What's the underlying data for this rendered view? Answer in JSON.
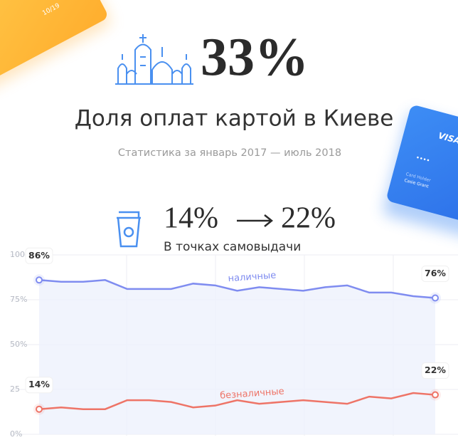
{
  "header": {
    "stat": "33%",
    "title": "Доля оплат картой в Киеве",
    "subtitle": "Статистика за январь 2017 — июль 2018"
  },
  "sub_stat": {
    "from": "14%",
    "to": "22%",
    "caption": "В точках самовыдачи"
  },
  "decor_cards": {
    "expiry": "10/19",
    "brand": "VISA",
    "holder_label": "Card Holder",
    "holder_name": "Casie Grant"
  },
  "chart_data": {
    "type": "line",
    "ylim": [
      0,
      100
    ],
    "yticks": [
      {
        "value": 0,
        "label": "0%"
      },
      25,
      {
        "value": 50,
        "label": "50%"
      },
      {
        "value": 75,
        "label": "75%"
      },
      100
    ],
    "grid": true,
    "series": [
      {
        "name": "наличные",
        "color": "#7f8cf0",
        "values": [
          86,
          85,
          85,
          86,
          81,
          81,
          81,
          84,
          83,
          80,
          82,
          81,
          80,
          82,
          83,
          79,
          79,
          77,
          76
        ],
        "value_labels": [
          "86%",
          null,
          null,
          null,
          null,
          null,
          null,
          null,
          null,
          null,
          null,
          null,
          null,
          null,
          null,
          null,
          null,
          null,
          "76%"
        ]
      },
      {
        "name": "безналичные",
        "color": "#ee7467",
        "values": [
          14,
          15,
          14,
          14,
          19,
          19,
          18,
          15,
          16,
          19,
          17,
          18,
          19,
          18,
          17,
          21,
          20,
          23,
          22
        ],
        "value_labels": [
          "14%",
          null,
          null,
          null,
          null,
          null,
          null,
          null,
          null,
          null,
          null,
          null,
          null,
          null,
          null,
          null,
          null,
          null,
          "22%"
        ]
      }
    ]
  }
}
